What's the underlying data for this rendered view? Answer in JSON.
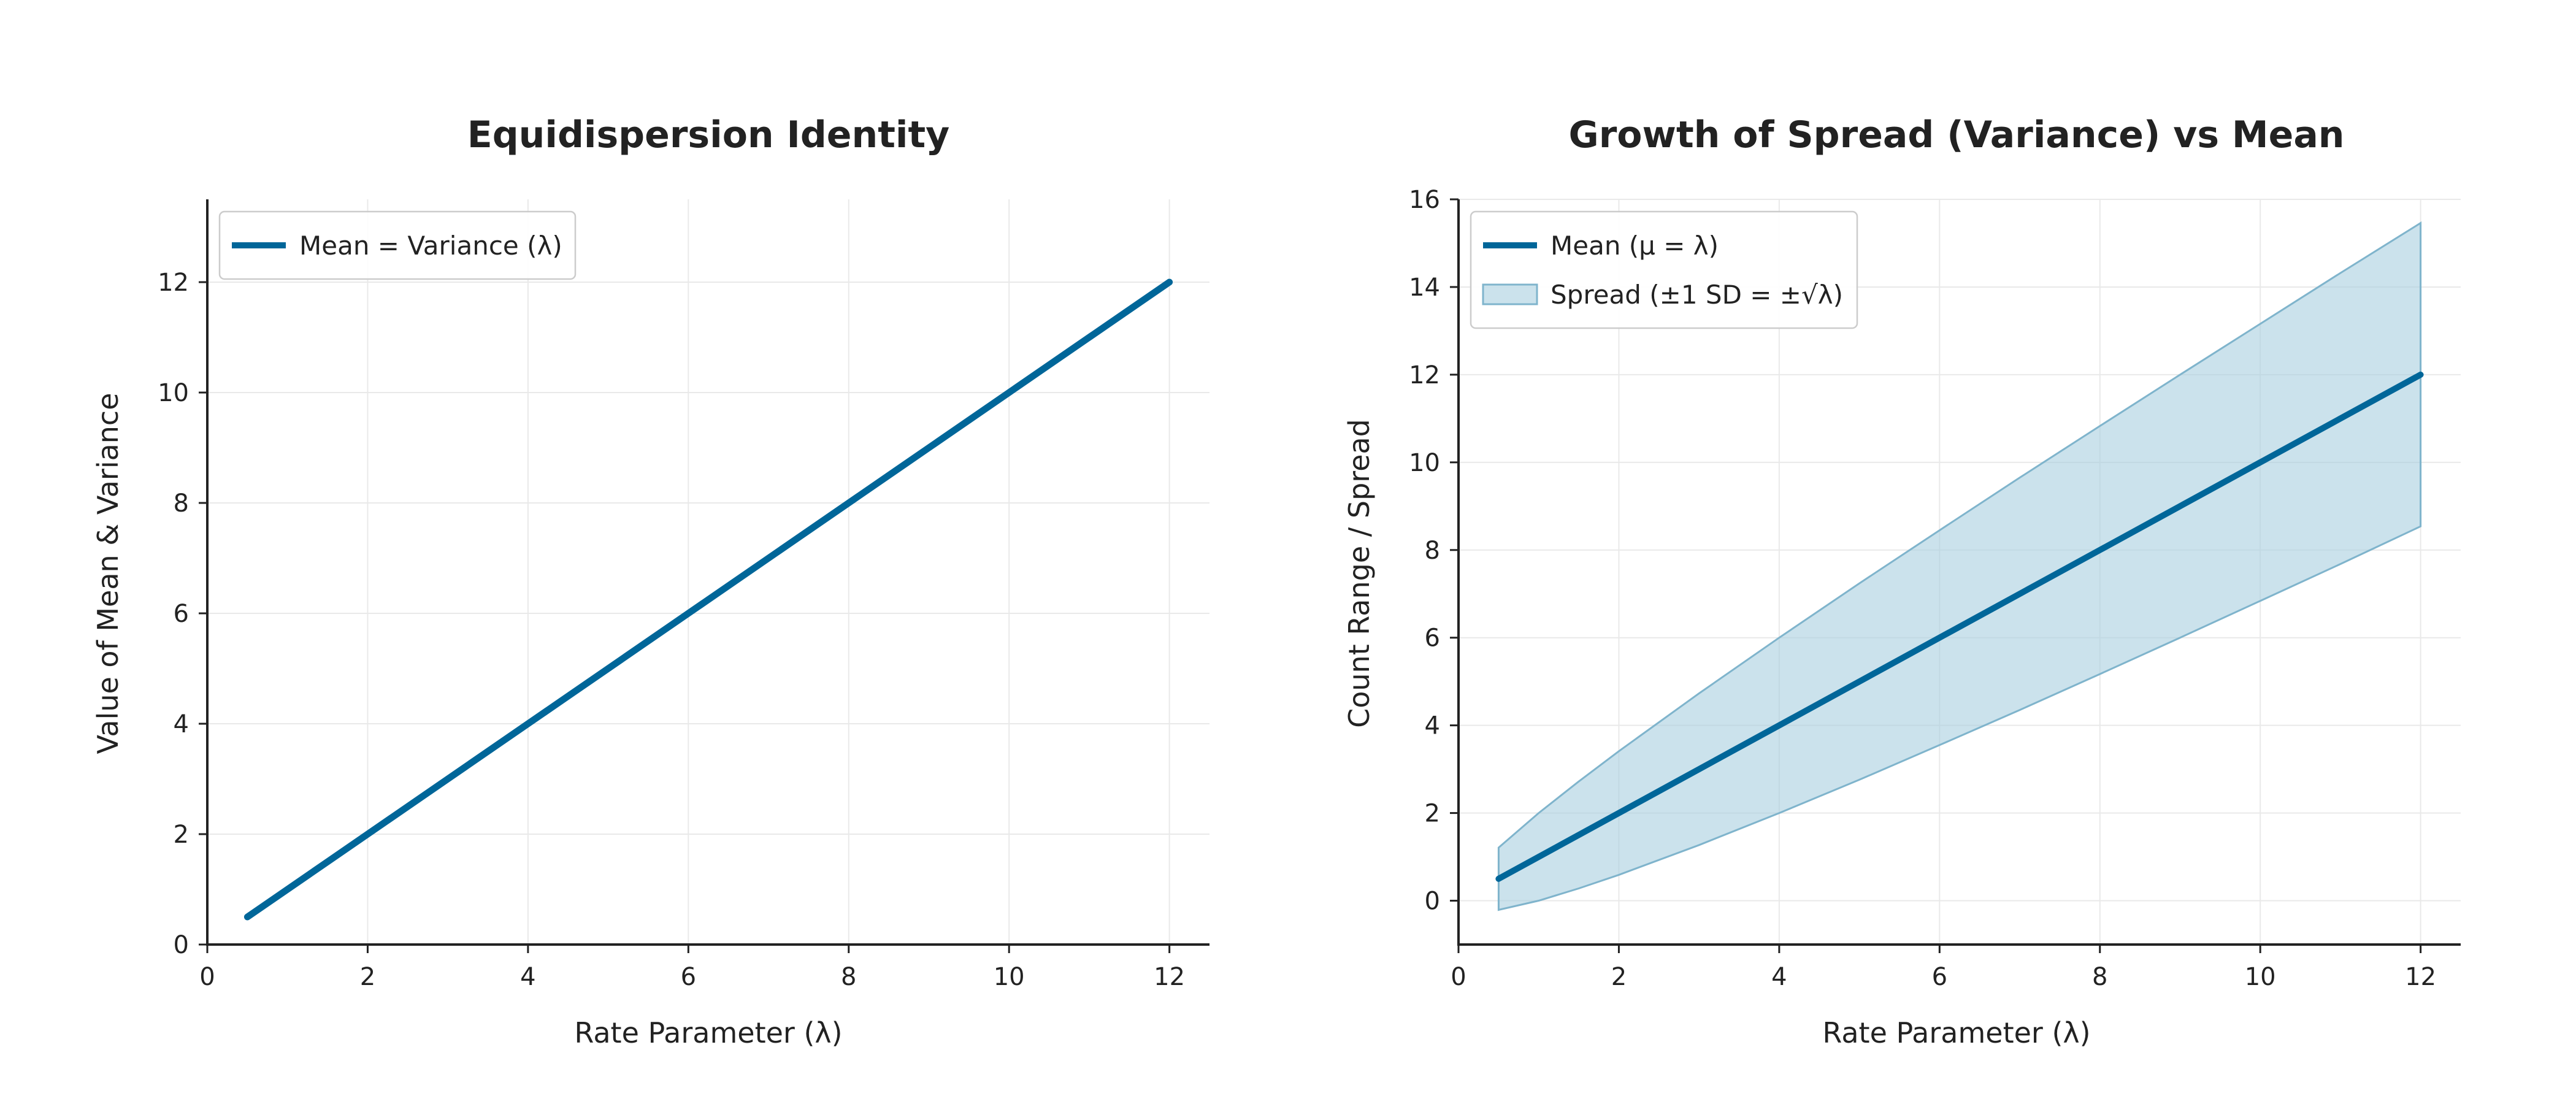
{
  "colors": {
    "line": "#006699",
    "band_fill": "#a8cfdf",
    "band_edge": "#7fb4cc"
  },
  "chart_data": [
    {
      "type": "line",
      "title": "Equidispersion Identity",
      "xlabel": "Rate Parameter (λ)",
      "ylabel": "Value of Mean & Variance",
      "xlim": [
        0,
        12.5
      ],
      "ylim": [
        0,
        13.5
      ],
      "xticks": [
        0,
        2,
        4,
        6,
        8,
        10,
        12
      ],
      "yticks": [
        0,
        2,
        4,
        6,
        8,
        10,
        12
      ],
      "grid": true,
      "legend_position": "top-left",
      "series": [
        {
          "name": "Mean = Variance (λ)",
          "x": [
            0.5,
            12
          ],
          "y": [
            0.5,
            12
          ]
        }
      ]
    },
    {
      "type": "area",
      "title": "Growth of Spread (Variance) vs Mean",
      "xlabel": "Rate Parameter (λ)",
      "ylabel": "Count Range / Spread",
      "xlim": [
        0,
        12.5
      ],
      "ylim": [
        -1,
        16
      ],
      "xticks": [
        0,
        2,
        4,
        6,
        8,
        10,
        12
      ],
      "yticks": [
        0,
        2,
        4,
        6,
        8,
        10,
        12,
        14,
        16
      ],
      "grid": true,
      "legend_position": "top-left",
      "series": [
        {
          "name": "Mean (μ = λ)",
          "x": [
            0.5,
            12
          ],
          "y": [
            0.5,
            12
          ]
        },
        {
          "name": "Spread (±1 SD = ±√λ)",
          "x": [
            0.5,
            1,
            1.5,
            2,
            3,
            4,
            5,
            6,
            7,
            8,
            9,
            10,
            11,
            12
          ],
          "lower": [
            -0.21,
            0,
            0.28,
            0.59,
            1.27,
            2,
            2.76,
            3.55,
            4.35,
            5.17,
            6,
            6.84,
            7.68,
            8.54
          ],
          "upper": [
            1.21,
            2,
            2.72,
            3.41,
            4.73,
            6,
            7.24,
            8.45,
            9.65,
            10.83,
            12,
            13.16,
            14.32,
            15.46
          ]
        }
      ]
    }
  ]
}
